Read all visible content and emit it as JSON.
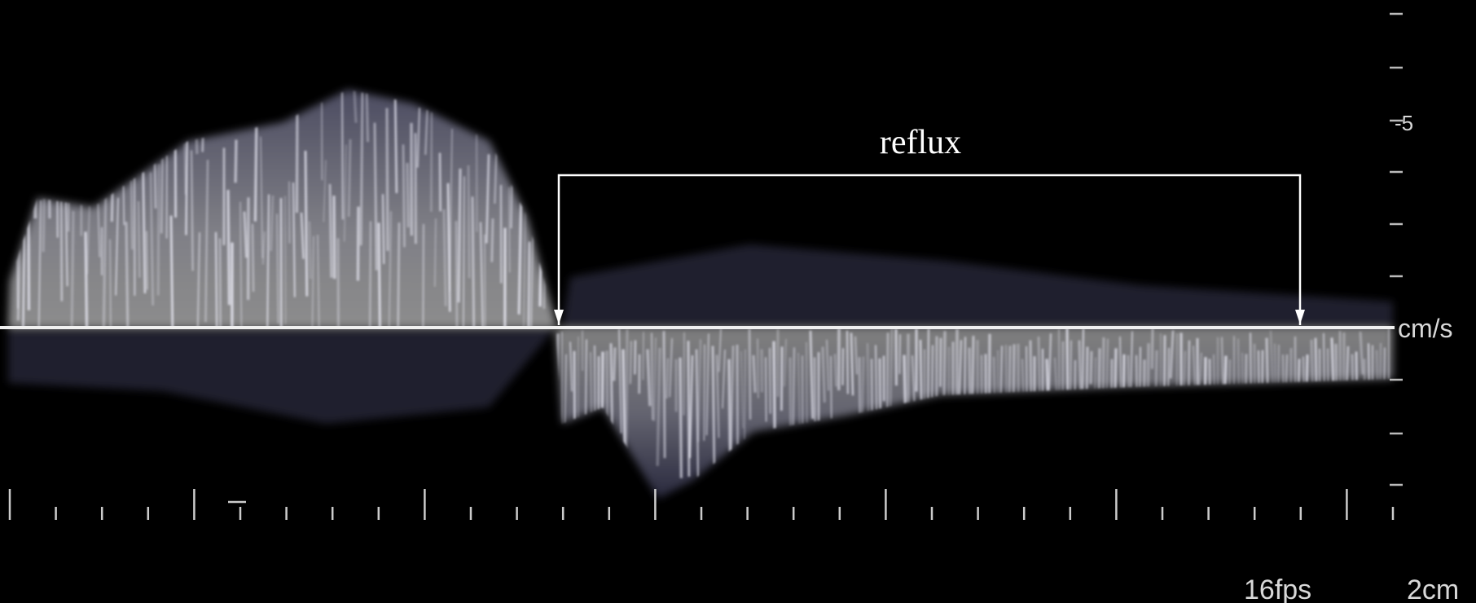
{
  "annotation": "reflux",
  "scale_label": "-5",
  "unit_label": "cm/s",
  "frame_rate": "16fps",
  "depth": "2cm"
}
